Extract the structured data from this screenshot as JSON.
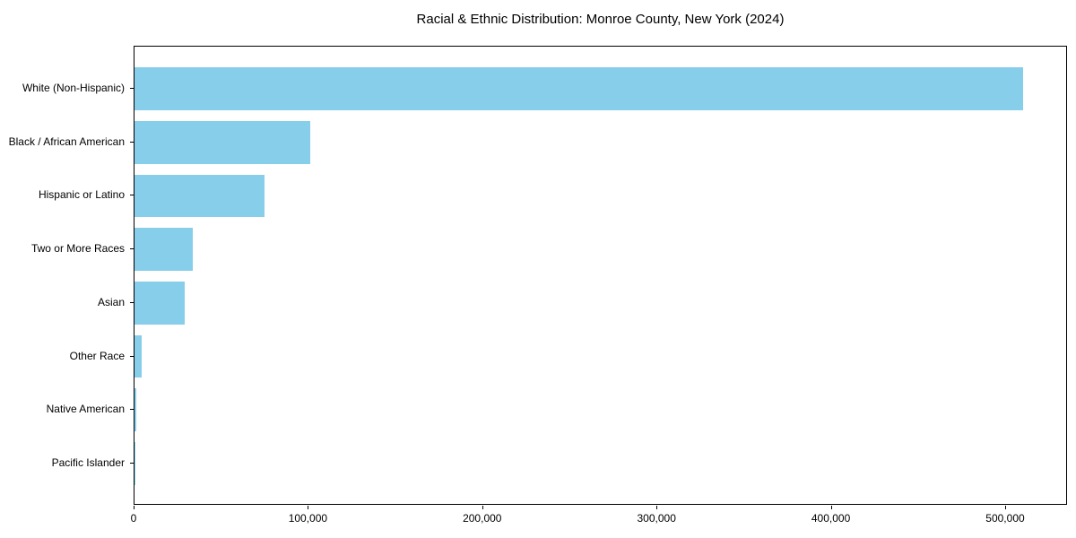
{
  "chart_data": {
    "type": "bar",
    "orientation": "horizontal",
    "title": "Racial & Ethnic Distribution: Monroe County, New York (2024)",
    "xlabel": "",
    "ylabel": "",
    "categories": [
      "White (Non-Hispanic)",
      "Black / African American",
      "Hispanic or Latino",
      "Two or More Races",
      "Asian",
      "Other Race",
      "Native American",
      "Pacific Islander"
    ],
    "values": [
      510000,
      101000,
      74500,
      33500,
      29000,
      4200,
      1000,
      300
    ],
    "xlim": [
      0,
      535500
    ],
    "x_ticks": [
      0,
      100000,
      200000,
      300000,
      400000,
      500000
    ],
    "x_tick_labels": [
      "0",
      "100,000",
      "200,000",
      "300,000",
      "400,000",
      "500,000"
    ],
    "bar_color": "#87CEEB",
    "bar_height_fraction": 0.8,
    "grid": false,
    "legend": null,
    "axis_color": "#000000",
    "text_color": "#000000",
    "background_color": "#ffffff"
  }
}
